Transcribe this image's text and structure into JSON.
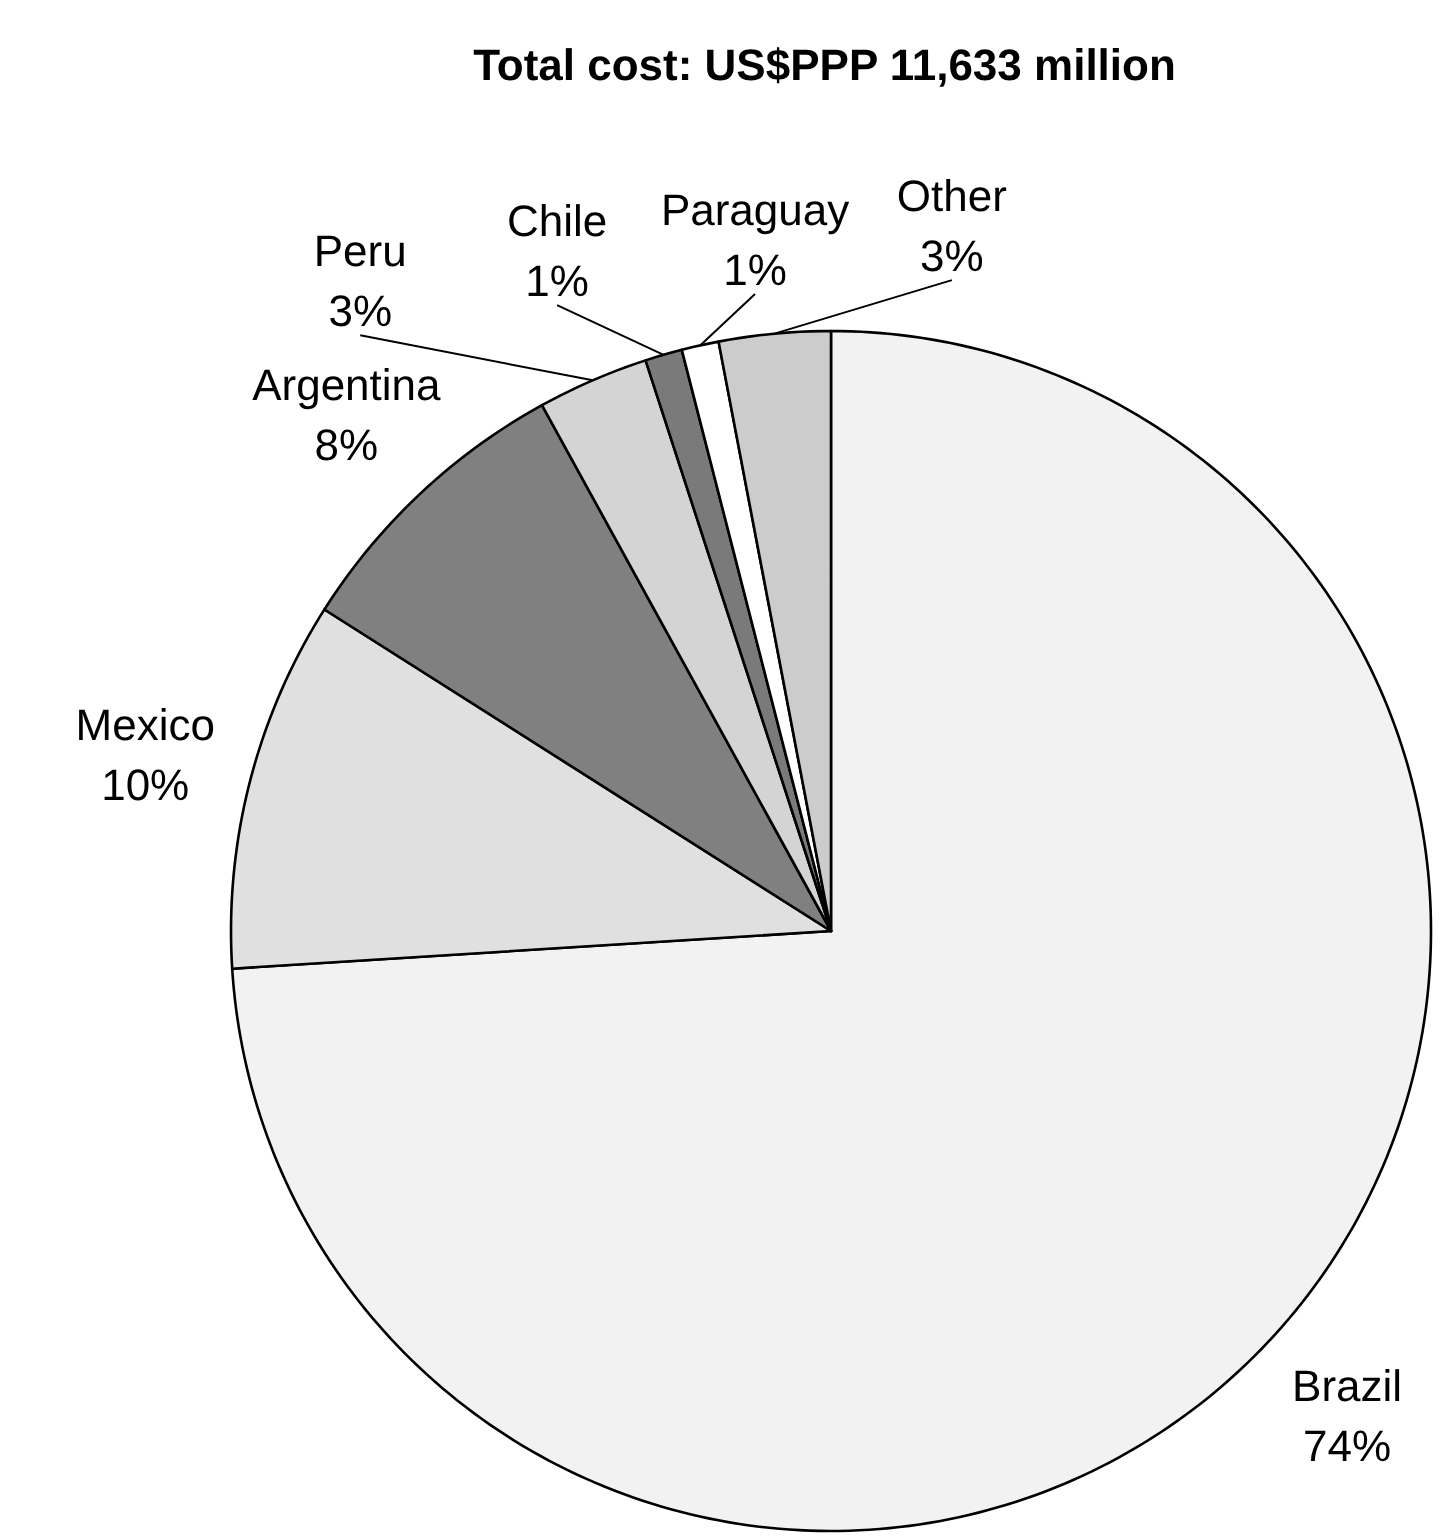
{
  "chart_data": {
    "type": "pie",
    "title": "Total cost:  US$PPP 11,633 million",
    "categories": [
      "Brazil",
      "Mexico",
      "Argentina",
      "Peru",
      "Chile",
      "Paraguay",
      "Other"
    ],
    "values": [
      74,
      10,
      8,
      3,
      1,
      1,
      3
    ],
    "value_labels": [
      "74%",
      "10%",
      "8%",
      "3%",
      "1%",
      "1%",
      "3%"
    ],
    "colors": [
      "#f2f2f2",
      "#e0e0e0",
      "#808080",
      "#d4d4d4",
      "#7a7a7a",
      "#ffffff",
      "#cccccc"
    ]
  }
}
